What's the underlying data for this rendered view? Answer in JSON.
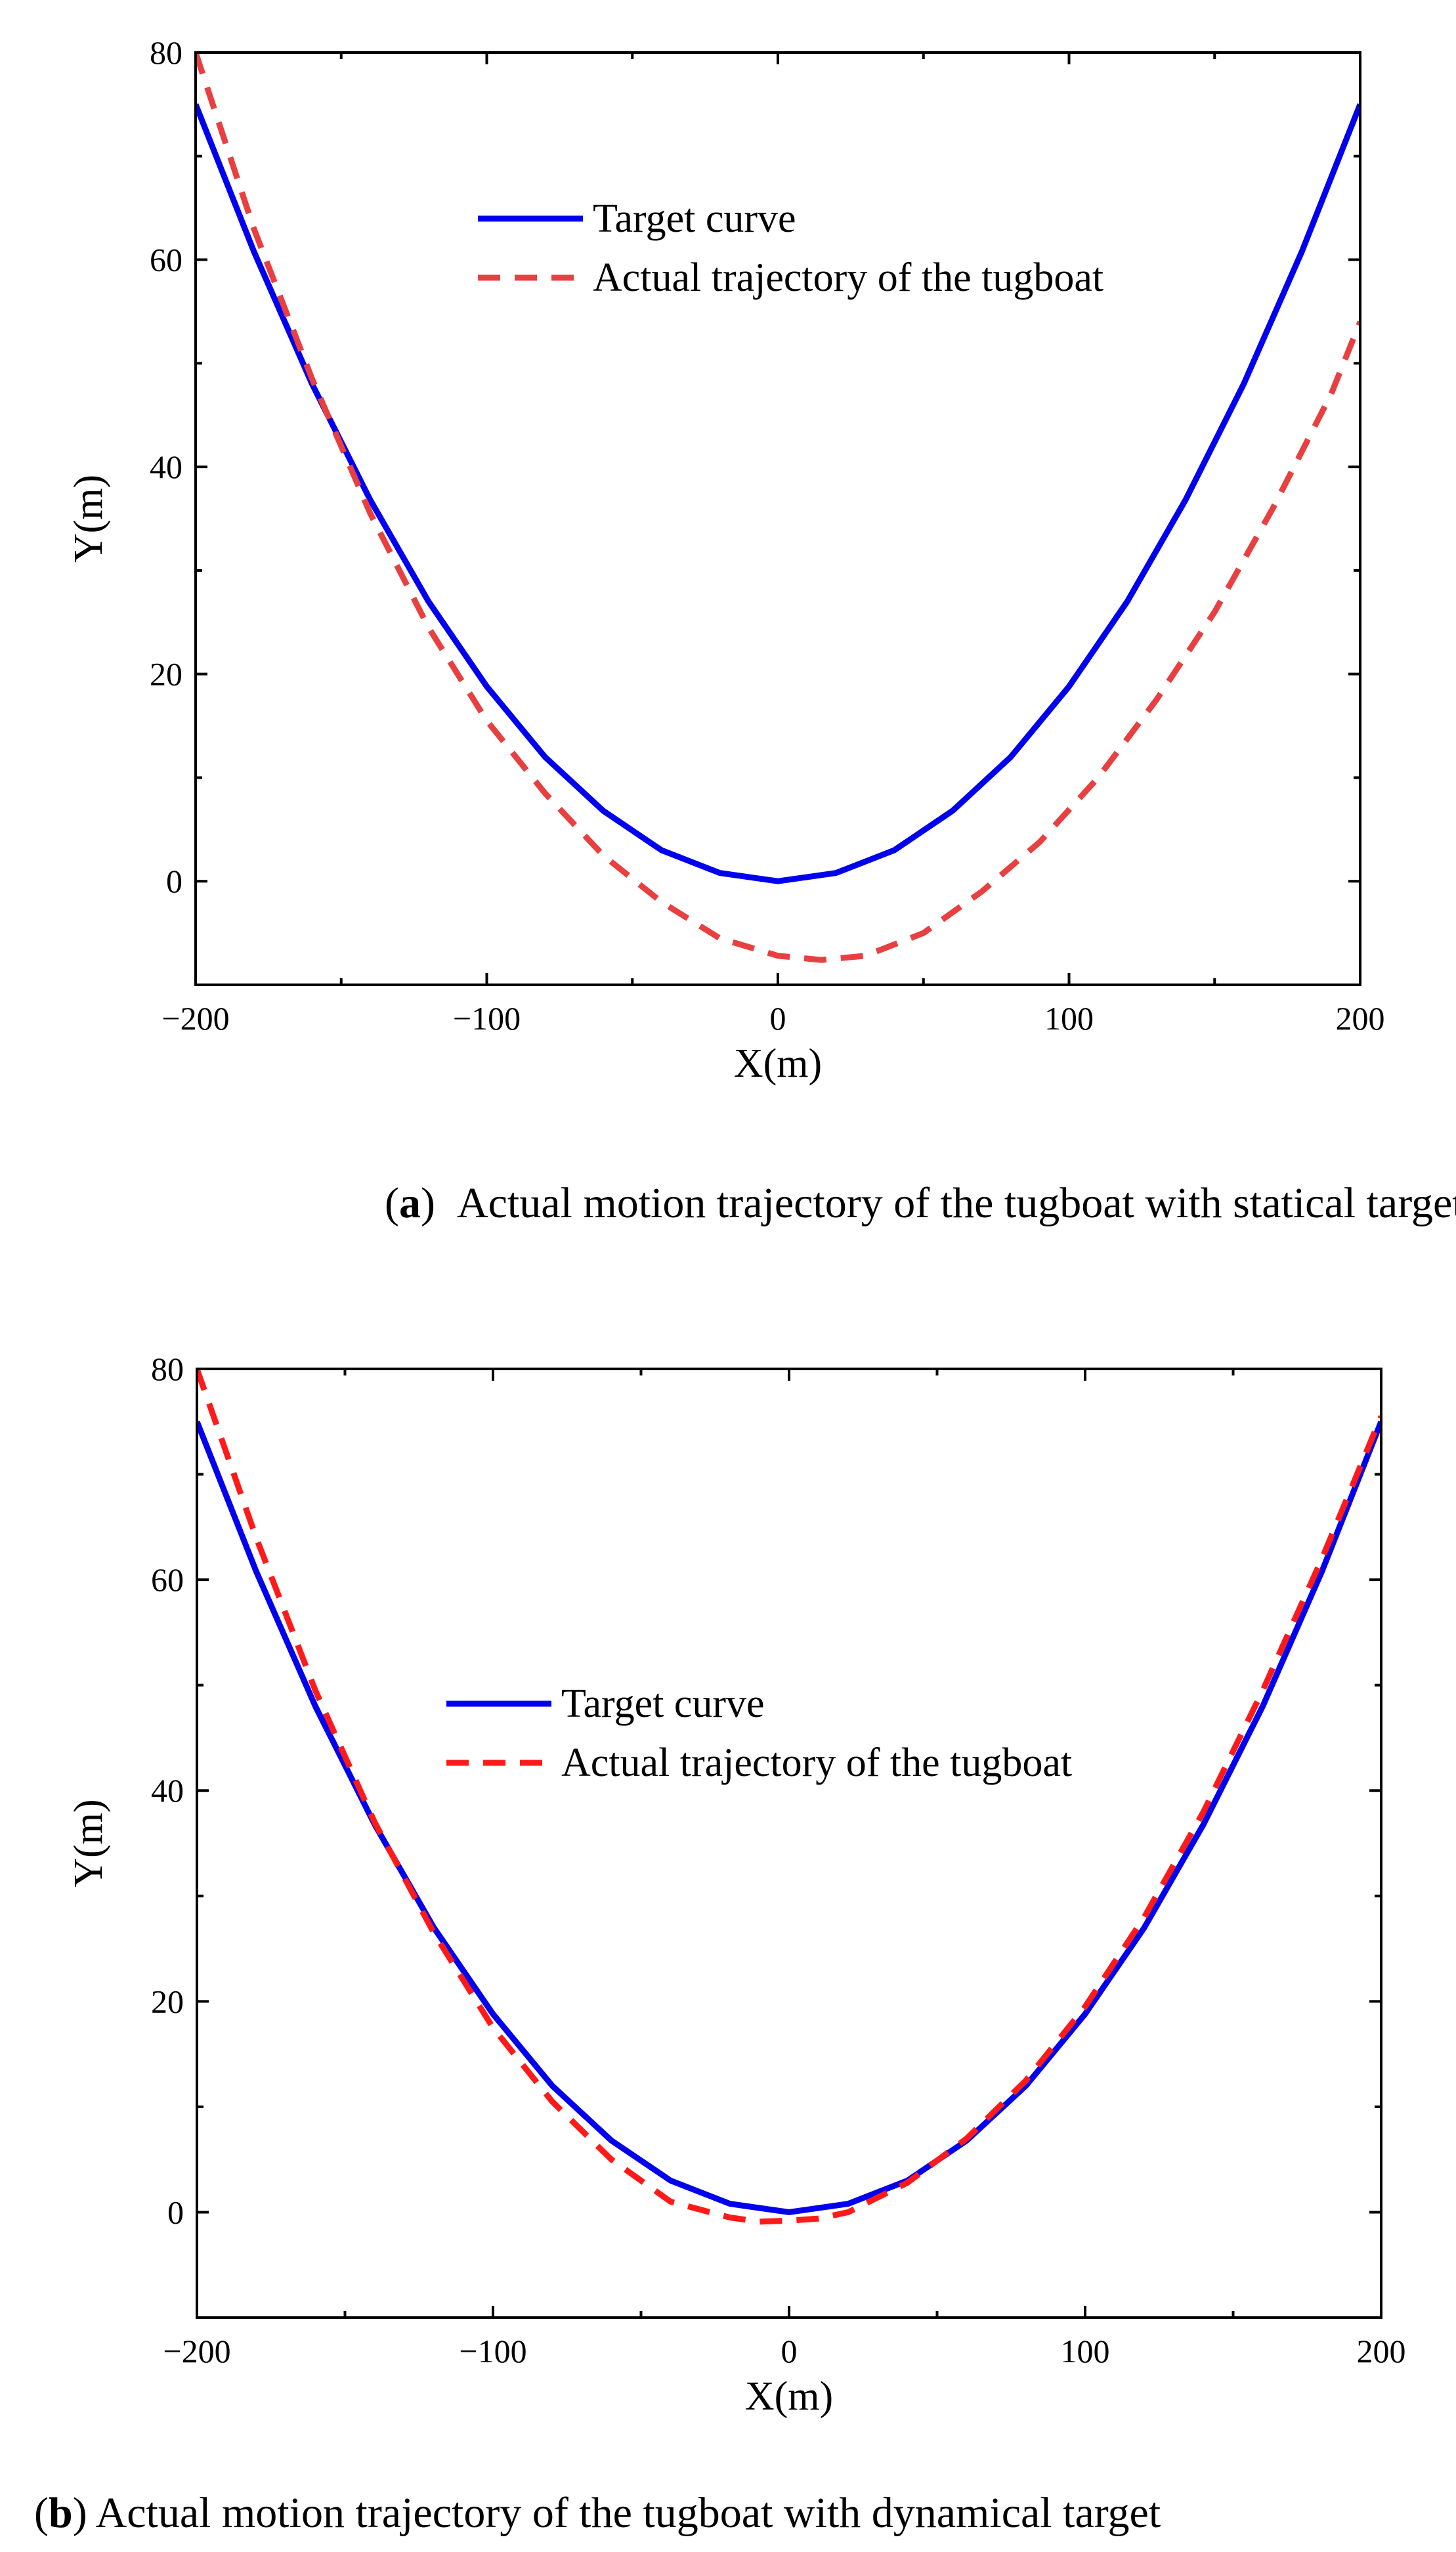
{
  "chart_data": [
    {
      "type": "line",
      "panel_letter": "a",
      "caption": "Actual motion trajectory of the tugboat with statical target",
      "xlabel": "X(m)",
      "ylabel": "Y(m)",
      "xlim": [
        -200,
        200
      ],
      "ylim": [
        -10,
        80
      ],
      "xticks": [
        -200,
        -100,
        0,
        100,
        200
      ],
      "yticks": [
        0,
        20,
        40,
        60,
        80
      ],
      "grid": false,
      "legend": "top-center",
      "series": [
        {
          "name": "Target curve",
          "style": "solid",
          "color": "#0000ee",
          "x": [
            -200,
            -180,
            -160,
            -140,
            -120,
            -100,
            -80,
            -60,
            -40,
            -20,
            0,
            20,
            40,
            60,
            80,
            100,
            120,
            140,
            160,
            180,
            200
          ],
          "y": [
            75,
            60.8,
            48,
            36.8,
            27,
            18.8,
            12,
            6.8,
            3,
            0.8,
            0,
            0.8,
            3,
            6.8,
            12,
            18.8,
            27,
            36.8,
            48,
            60.8,
            75
          ]
        },
        {
          "name": "Actual trajectory of the tugboat",
          "style": "dashed",
          "color": "#e84040",
          "x": [
            -200,
            -180,
            -160,
            -140,
            -120,
            -100,
            -80,
            -60,
            -40,
            -20,
            0,
            15,
            30,
            50,
            70,
            90,
            110,
            130,
            150,
            170,
            190,
            200
          ],
          "y": [
            80,
            63,
            48.5,
            35.5,
            24.5,
            15.5,
            8.5,
            2.5,
            -2,
            -5.5,
            -7.2,
            -7.6,
            -7.2,
            -5,
            -1,
            3.8,
            10,
            17.5,
            26,
            36,
            47,
            54
          ]
        }
      ]
    },
    {
      "type": "line",
      "panel_letter": "b",
      "caption": "Actual motion trajectory of the tugboat with dynamical target",
      "xlabel": "X(m)",
      "ylabel": "Y(m)",
      "xlim": [
        -200,
        200
      ],
      "ylim": [
        -10,
        80
      ],
      "xticks": [
        -200,
        -100,
        0,
        100,
        200
      ],
      "yticks": [
        0,
        20,
        40,
        60,
        80
      ],
      "grid": false,
      "legend": "top-center",
      "series": [
        {
          "name": "Target curve",
          "style": "solid",
          "color": "#0000ee",
          "x": [
            -200,
            -180,
            -160,
            -140,
            -120,
            -100,
            -80,
            -60,
            -40,
            -20,
            0,
            20,
            40,
            60,
            80,
            100,
            120,
            140,
            160,
            180,
            200
          ],
          "y": [
            75,
            60.8,
            48,
            36.8,
            27,
            18.8,
            12,
            6.8,
            3,
            0.8,
            0,
            0.8,
            3,
            6.8,
            12,
            18.8,
            27,
            36.8,
            48,
            60.8,
            75
          ]
        },
        {
          "name": "Actual trajectory of the tugboat",
          "style": "dashed",
          "color": "#ff1a1a",
          "x": [
            -200,
            -180,
            -160,
            -140,
            -120,
            -100,
            -80,
            -60,
            -40,
            -20,
            -10,
            0,
            10,
            20,
            40,
            60,
            80,
            100,
            120,
            140,
            160,
            180,
            200
          ],
          "y": [
            80,
            64,
            49.5,
            37,
            26.5,
            17.5,
            10.5,
            5,
            1,
            -0.5,
            -0.9,
            -0.8,
            -0.6,
            0,
            2.8,
            7,
            12.5,
            19.5,
            28,
            38,
            49.5,
            62,
            75.5
          ]
        }
      ]
    }
  ]
}
